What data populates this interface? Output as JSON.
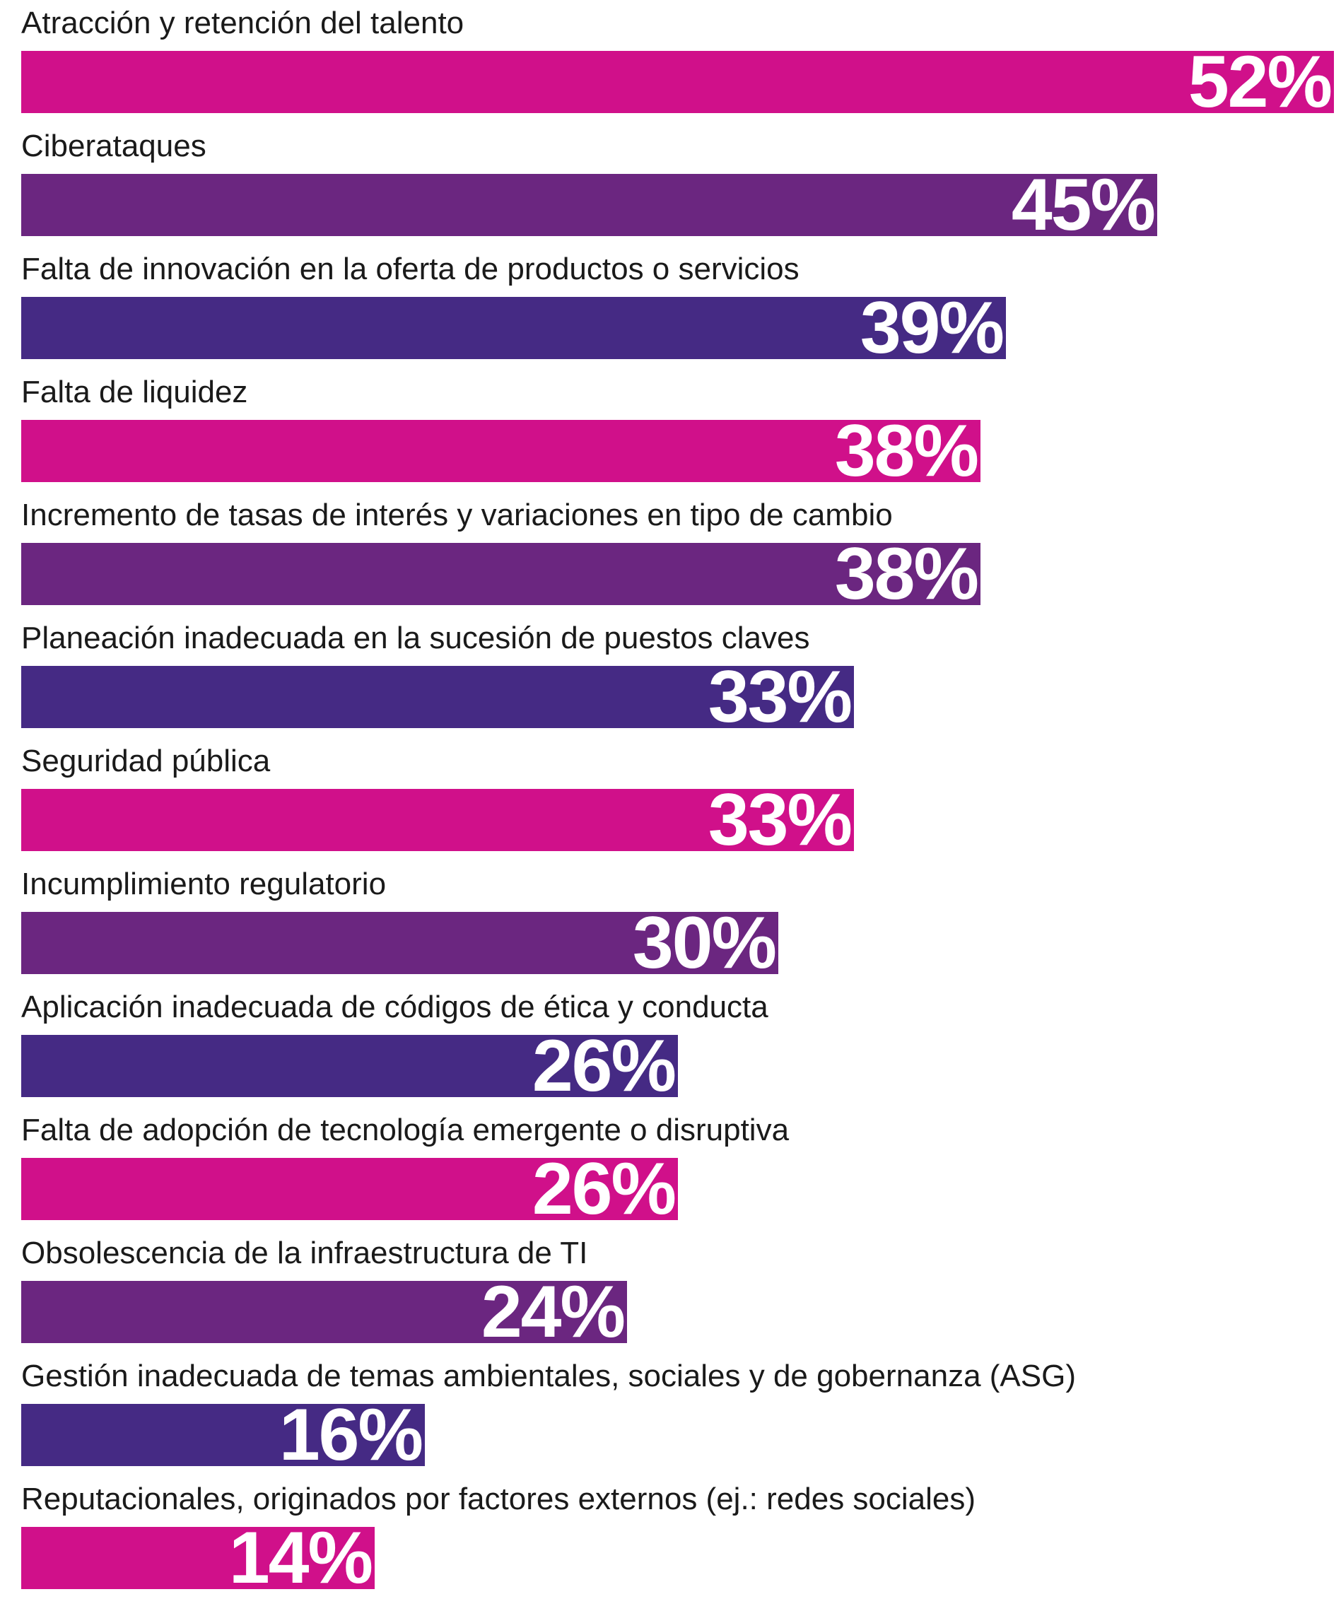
{
  "chart_data": {
    "type": "bar",
    "orientation": "horizontal",
    "categories": [
      "Atracción y retención del talento",
      "Ciberataques",
      "Falta de innovación en la oferta de productos o servicios",
      "Falta de liquidez",
      "Incremento de tasas de interés y variaciones en tipo de cambio",
      "Planeación inadecuada en la sucesión de puestos claves",
      "Seguridad pública",
      "Incumplimiento regulatorio",
      "Aplicación inadecuada de códigos de ética y conducta",
      "Falta de adopción de tecnología emergente o disruptiva",
      "Obsolescencia de la infraestructura de TI",
      "Gestión inadecuada de temas ambientales, sociales y de gobernanza (ASG)",
      "Reputacionales, originados por factores externos (ej.: redes sociales)"
    ],
    "values": [
      52,
      45,
      39,
      38,
      38,
      33,
      33,
      30,
      26,
      26,
      24,
      16,
      14
    ],
    "value_labels": [
      "52%",
      "45%",
      "39%",
      "38%",
      "38%",
      "33%",
      "33%",
      "30%",
      "26%",
      "26%",
      "24%",
      "16%",
      "14%"
    ],
    "bar_colors": [
      "#d0108a",
      "#6b2680",
      "#452a84",
      "#d0108a",
      "#6b2680",
      "#452a84",
      "#d0108a",
      "#6b2680",
      "#452a84",
      "#d0108a",
      "#6b2680",
      "#452a84",
      "#d0108a"
    ],
    "unit": "%",
    "xlim": [
      0,
      52
    ],
    "grid": false,
    "legend": "none",
    "title": "",
    "xlabel": "",
    "ylabel": ""
  },
  "colors": {
    "magenta": "#d0108a",
    "purple": "#6b2680",
    "indigo": "#452a84",
    "label_text": "#1a1a1a",
    "value_text": "#ffffff"
  }
}
